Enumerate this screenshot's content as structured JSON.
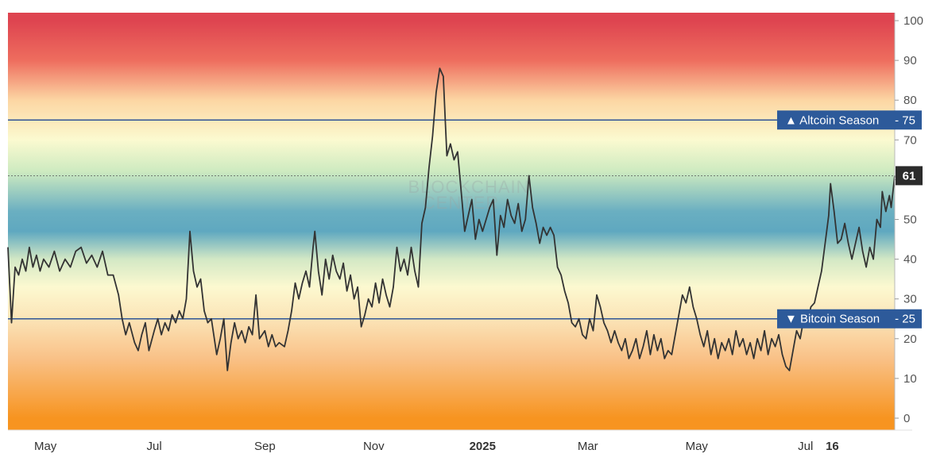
{
  "chart_data": {
    "type": "line",
    "title": "",
    "xlabel": "",
    "ylabel": "",
    "ylim": [
      -3,
      102
    ],
    "yticks": [
      0,
      10,
      20,
      30,
      40,
      50,
      60,
      70,
      80,
      90,
      100
    ],
    "x_ticks": [
      {
        "label": "May",
        "date": "2024-05-01",
        "bold": false
      },
      {
        "label": "Jul",
        "date": "2024-07-01",
        "bold": false
      },
      {
        "label": "Sep",
        "date": "2024-09-01",
        "bold": false
      },
      {
        "label": "Nov",
        "date": "2024-11-01",
        "bold": false
      },
      {
        "label": "2025",
        "date": "2025-01-01",
        "bold": true
      },
      {
        "label": "Mar",
        "date": "2025-03-01",
        "bold": false
      },
      {
        "label": "May",
        "date": "2025-05-01",
        "bold": false
      },
      {
        "label": "Jul",
        "date": "2025-07-01",
        "bold": false
      },
      {
        "label": "16",
        "date": "2025-07-16",
        "bold": true
      }
    ],
    "x_range": [
      "2024-04-10",
      "2025-08-20"
    ],
    "series": [
      {
        "color": "#333333",
        "points": [
          [
            "2024-04-10",
            43
          ],
          [
            "2024-04-12",
            24
          ],
          [
            "2024-04-14",
            38
          ],
          [
            "2024-04-16",
            36
          ],
          [
            "2024-04-18",
            40
          ],
          [
            "2024-04-20",
            37
          ],
          [
            "2024-04-22",
            43
          ],
          [
            "2024-04-24",
            38
          ],
          [
            "2024-04-26",
            41
          ],
          [
            "2024-04-28",
            37
          ],
          [
            "2024-04-30",
            40
          ],
          [
            "2024-05-03",
            38
          ],
          [
            "2024-05-06",
            42
          ],
          [
            "2024-05-09",
            37
          ],
          [
            "2024-05-12",
            40
          ],
          [
            "2024-05-15",
            38
          ],
          [
            "2024-05-18",
            42
          ],
          [
            "2024-05-21",
            43
          ],
          [
            "2024-05-24",
            39
          ],
          [
            "2024-05-27",
            41
          ],
          [
            "2024-05-30",
            38
          ],
          [
            "2024-06-02",
            42
          ],
          [
            "2024-06-05",
            36
          ],
          [
            "2024-06-08",
            36
          ],
          [
            "2024-06-11",
            31
          ],
          [
            "2024-06-13",
            25
          ],
          [
            "2024-06-15",
            21
          ],
          [
            "2024-06-17",
            24
          ],
          [
            "2024-06-20",
            19
          ],
          [
            "2024-06-22",
            17
          ],
          [
            "2024-06-24",
            21
          ],
          [
            "2024-06-26",
            24
          ],
          [
            "2024-06-28",
            17
          ],
          [
            "2024-07-01",
            22
          ],
          [
            "2024-07-03",
            25
          ],
          [
            "2024-07-05",
            21
          ],
          [
            "2024-07-07",
            24
          ],
          [
            "2024-07-09",
            22
          ],
          [
            "2024-07-11",
            26
          ],
          [
            "2024-07-13",
            24
          ],
          [
            "2024-07-15",
            27
          ],
          [
            "2024-07-17",
            25
          ],
          [
            "2024-07-19",
            30
          ],
          [
            "2024-07-21",
            47
          ],
          [
            "2024-07-23",
            37
          ],
          [
            "2024-07-25",
            33
          ],
          [
            "2024-07-27",
            35
          ],
          [
            "2024-07-29",
            27
          ],
          [
            "2024-07-31",
            24
          ],
          [
            "2024-08-02",
            25
          ],
          [
            "2024-08-05",
            16
          ],
          [
            "2024-08-07",
            20
          ],
          [
            "2024-08-09",
            25
          ],
          [
            "2024-08-11",
            12
          ],
          [
            "2024-08-13",
            19
          ],
          [
            "2024-08-15",
            24
          ],
          [
            "2024-08-17",
            20
          ],
          [
            "2024-08-19",
            22
          ],
          [
            "2024-08-21",
            19
          ],
          [
            "2024-08-23",
            23
          ],
          [
            "2024-08-25",
            21
          ],
          [
            "2024-08-27",
            31
          ],
          [
            "2024-08-29",
            20
          ],
          [
            "2024-09-01",
            22
          ],
          [
            "2024-09-03",
            18
          ],
          [
            "2024-09-05",
            21
          ],
          [
            "2024-09-07",
            18
          ],
          [
            "2024-09-09",
            19
          ],
          [
            "2024-09-12",
            18
          ],
          [
            "2024-09-14",
            22
          ],
          [
            "2024-09-16",
            27
          ],
          [
            "2024-09-18",
            34
          ],
          [
            "2024-09-20",
            30
          ],
          [
            "2024-09-22",
            34
          ],
          [
            "2024-09-24",
            37
          ],
          [
            "2024-09-26",
            33
          ],
          [
            "2024-09-28",
            43
          ],
          [
            "2024-09-29",
            47
          ],
          [
            "2024-10-01",
            37
          ],
          [
            "2024-10-03",
            31
          ],
          [
            "2024-10-05",
            40
          ],
          [
            "2024-10-07",
            35
          ],
          [
            "2024-10-09",
            41
          ],
          [
            "2024-10-11",
            37
          ],
          [
            "2024-10-13",
            35
          ],
          [
            "2024-10-15",
            39
          ],
          [
            "2024-10-17",
            32
          ],
          [
            "2024-10-19",
            36
          ],
          [
            "2024-10-21",
            30
          ],
          [
            "2024-10-23",
            33
          ],
          [
            "2024-10-25",
            23
          ],
          [
            "2024-10-27",
            26
          ],
          [
            "2024-10-29",
            30
          ],
          [
            "2024-10-31",
            28
          ],
          [
            "2024-11-02",
            34
          ],
          [
            "2024-11-04",
            29
          ],
          [
            "2024-11-06",
            35
          ],
          [
            "2024-11-08",
            31
          ],
          [
            "2024-11-10",
            28
          ],
          [
            "2024-11-12",
            33
          ],
          [
            "2024-11-14",
            43
          ],
          [
            "2024-11-16",
            37
          ],
          [
            "2024-11-18",
            40
          ],
          [
            "2024-11-20",
            36
          ],
          [
            "2024-11-22",
            43
          ],
          [
            "2024-11-24",
            37
          ],
          [
            "2024-11-26",
            33
          ],
          [
            "2024-11-28",
            49
          ],
          [
            "2024-11-30",
            53
          ],
          [
            "2024-12-02",
            63
          ],
          [
            "2024-12-04",
            71
          ],
          [
            "2024-12-06",
            82
          ],
          [
            "2024-12-08",
            88
          ],
          [
            "2024-12-10",
            86
          ],
          [
            "2024-12-11",
            76
          ],
          [
            "2024-12-12",
            66
          ],
          [
            "2024-12-14",
            69
          ],
          [
            "2024-12-16",
            65
          ],
          [
            "2024-12-18",
            67
          ],
          [
            "2024-12-20",
            57
          ],
          [
            "2024-12-22",
            47
          ],
          [
            "2024-12-24",
            51
          ],
          [
            "2024-12-26",
            55
          ],
          [
            "2024-12-28",
            45
          ],
          [
            "2024-12-30",
            50
          ],
          [
            "2025-01-01",
            47
          ],
          [
            "2025-01-03",
            50
          ],
          [
            "2025-01-05",
            53
          ],
          [
            "2025-01-07",
            55
          ],
          [
            "2025-01-09",
            41
          ],
          [
            "2025-01-11",
            51
          ],
          [
            "2025-01-13",
            48
          ],
          [
            "2025-01-15",
            55
          ],
          [
            "2025-01-17",
            51
          ],
          [
            "2025-01-19",
            49
          ],
          [
            "2025-01-21",
            54
          ],
          [
            "2025-01-23",
            47
          ],
          [
            "2025-01-25",
            50
          ],
          [
            "2025-01-27",
            61
          ],
          [
            "2025-01-29",
            53
          ],
          [
            "2025-01-31",
            49
          ],
          [
            "2025-02-02",
            44
          ],
          [
            "2025-02-04",
            48
          ],
          [
            "2025-02-06",
            46
          ],
          [
            "2025-02-08",
            48
          ],
          [
            "2025-02-10",
            46
          ],
          [
            "2025-02-12",
            38
          ],
          [
            "2025-02-14",
            36
          ],
          [
            "2025-02-16",
            32
          ],
          [
            "2025-02-18",
            29
          ],
          [
            "2025-02-20",
            24
          ],
          [
            "2025-02-22",
            23
          ],
          [
            "2025-02-24",
            25
          ],
          [
            "2025-02-26",
            21
          ],
          [
            "2025-02-28",
            20
          ],
          [
            "2025-03-02",
            25
          ],
          [
            "2025-03-04",
            22
          ],
          [
            "2025-03-06",
            31
          ],
          [
            "2025-03-08",
            28
          ],
          [
            "2025-03-10",
            24
          ],
          [
            "2025-03-12",
            22
          ],
          [
            "2025-03-14",
            19
          ],
          [
            "2025-03-16",
            22
          ],
          [
            "2025-03-18",
            19
          ],
          [
            "2025-03-20",
            17
          ],
          [
            "2025-03-22",
            20
          ],
          [
            "2025-03-24",
            15
          ],
          [
            "2025-03-26",
            17
          ],
          [
            "2025-03-28",
            20
          ],
          [
            "2025-03-30",
            15
          ],
          [
            "2025-04-01",
            18
          ],
          [
            "2025-04-03",
            22
          ],
          [
            "2025-04-05",
            16
          ],
          [
            "2025-04-07",
            21
          ],
          [
            "2025-04-09",
            17
          ],
          [
            "2025-04-11",
            20
          ],
          [
            "2025-04-13",
            15
          ],
          [
            "2025-04-15",
            17
          ],
          [
            "2025-04-17",
            16
          ],
          [
            "2025-04-19",
            21
          ],
          [
            "2025-04-21",
            26
          ],
          [
            "2025-04-23",
            31
          ],
          [
            "2025-04-25",
            29
          ],
          [
            "2025-04-27",
            33
          ],
          [
            "2025-04-29",
            28
          ],
          [
            "2025-05-01",
            25
          ],
          [
            "2025-05-03",
            21
          ],
          [
            "2025-05-05",
            18
          ],
          [
            "2025-05-07",
            22
          ],
          [
            "2025-05-09",
            16
          ],
          [
            "2025-05-11",
            20
          ],
          [
            "2025-05-13",
            15
          ],
          [
            "2025-05-15",
            19
          ],
          [
            "2025-05-17",
            17
          ],
          [
            "2025-05-19",
            20
          ],
          [
            "2025-05-21",
            16
          ],
          [
            "2025-05-23",
            22
          ],
          [
            "2025-05-25",
            18
          ],
          [
            "2025-05-27",
            20
          ],
          [
            "2025-05-29",
            16
          ],
          [
            "2025-05-31",
            19
          ],
          [
            "2025-06-02",
            15
          ],
          [
            "2025-06-04",
            20
          ],
          [
            "2025-06-06",
            17
          ],
          [
            "2025-06-08",
            22
          ],
          [
            "2025-06-10",
            16
          ],
          [
            "2025-06-12",
            20
          ],
          [
            "2025-06-14",
            18
          ],
          [
            "2025-06-16",
            21
          ],
          [
            "2025-06-18",
            16
          ],
          [
            "2025-06-20",
            13
          ],
          [
            "2025-06-22",
            12
          ],
          [
            "2025-06-24",
            17
          ],
          [
            "2025-06-26",
            22
          ],
          [
            "2025-06-28",
            20
          ],
          [
            "2025-06-30",
            25
          ],
          [
            "2025-07-02",
            24
          ],
          [
            "2025-07-04",
            28
          ],
          [
            "2025-07-06",
            29
          ],
          [
            "2025-07-08",
            33
          ],
          [
            "2025-07-10",
            37
          ],
          [
            "2025-07-12",
            44
          ],
          [
            "2025-07-14",
            51
          ],
          [
            "2025-07-15",
            59
          ],
          [
            "2025-07-17",
            52
          ],
          [
            "2025-07-19",
            44
          ],
          [
            "2025-07-21",
            45
          ],
          [
            "2025-07-23",
            49
          ],
          [
            "2025-07-25",
            44
          ],
          [
            "2025-07-27",
            40
          ],
          [
            "2025-07-29",
            44
          ],
          [
            "2025-07-31",
            48
          ],
          [
            "2025-08-02",
            42
          ],
          [
            "2025-08-04",
            38
          ],
          [
            "2025-08-06",
            43
          ],
          [
            "2025-08-08",
            40
          ],
          [
            "2025-08-10",
            50
          ],
          [
            "2025-08-12",
            48
          ],
          [
            "2025-08-13",
            57
          ],
          [
            "2025-08-15",
            52
          ],
          [
            "2025-08-17",
            56
          ],
          [
            "2025-08-18",
            53
          ],
          [
            "2025-08-20",
            61
          ]
        ]
      }
    ],
    "reference_lines": [
      {
        "label": "▲ Altcoin Season",
        "value": 75,
        "value_label": "75"
      },
      {
        "label": "▼ Bitcoin Season",
        "value": 25,
        "value_label": "25"
      }
    ],
    "current_value": 61,
    "current_value_label": "61",
    "watermark": [
      "BLOCKCHAIN",
      "CENTER"
    ],
    "colors": {
      "line": "#333333",
      "reference_line": "#2f5597",
      "flag_bg": "#2d5a9a",
      "current_bg": "#2b2b2b"
    },
    "background_gradient": [
      {
        "value": 100,
        "color": "#de4450"
      },
      {
        "value": 90,
        "color": "#ee6d5e"
      },
      {
        "value": 80,
        "color": "#fcd6a3"
      },
      {
        "value": 70,
        "color": "#fbfad0"
      },
      {
        "value": 62,
        "color": "#cdeac0"
      },
      {
        "value": 52,
        "color": "#6aafc1"
      },
      {
        "value": 47,
        "color": "#5fa8c0"
      },
      {
        "value": 40,
        "color": "#d3e8c5"
      },
      {
        "value": 33,
        "color": "#fcf9d0"
      },
      {
        "value": 25,
        "color": "#fbe4b7"
      },
      {
        "value": 15,
        "color": "#f9c187"
      },
      {
        "value": 0,
        "color": "#f79420"
      }
    ]
  }
}
